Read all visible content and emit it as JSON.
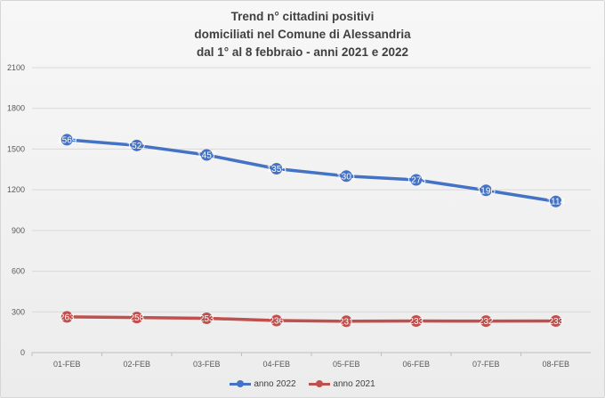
{
  "chart_data": {
    "type": "line",
    "title_lines": [
      "Trend n° cittadini positivi",
      "domiciliati nel Comune di Alessandria",
      "dal 1° al 8 febbraio - anni 2021 e 2022"
    ],
    "categories": [
      "01-FEB",
      "02-FEB",
      "03-FEB",
      "04-FEB",
      "05-FEB",
      "06-FEB",
      "07-FEB",
      "08-FEB"
    ],
    "ylim": [
      0,
      2100
    ],
    "yticks": [
      0,
      300,
      600,
      900,
      1200,
      1500,
      1800,
      2100
    ],
    "grid": true,
    "legend_position": "bottom",
    "series": [
      {
        "name": "anno 2022",
        "color": "#4472c4",
        "values": [
          1569,
          1527,
          1457,
          1355,
          1301,
          1273,
          1196,
          1114
        ],
        "data_labels": [
          "1569",
          "1527",
          "1457",
          "1355",
          "1301",
          "1273",
          "1196",
          "1114"
        ]
      },
      {
        "name": "anno 2021",
        "color": "#c0504d",
        "values": [
          263,
          258,
          253,
          236,
          231,
          233,
          232,
          233
        ],
        "data_labels": [
          "263",
          "258",
          "253",
          "236",
          "231",
          "233",
          "232",
          "233"
        ]
      }
    ]
  }
}
